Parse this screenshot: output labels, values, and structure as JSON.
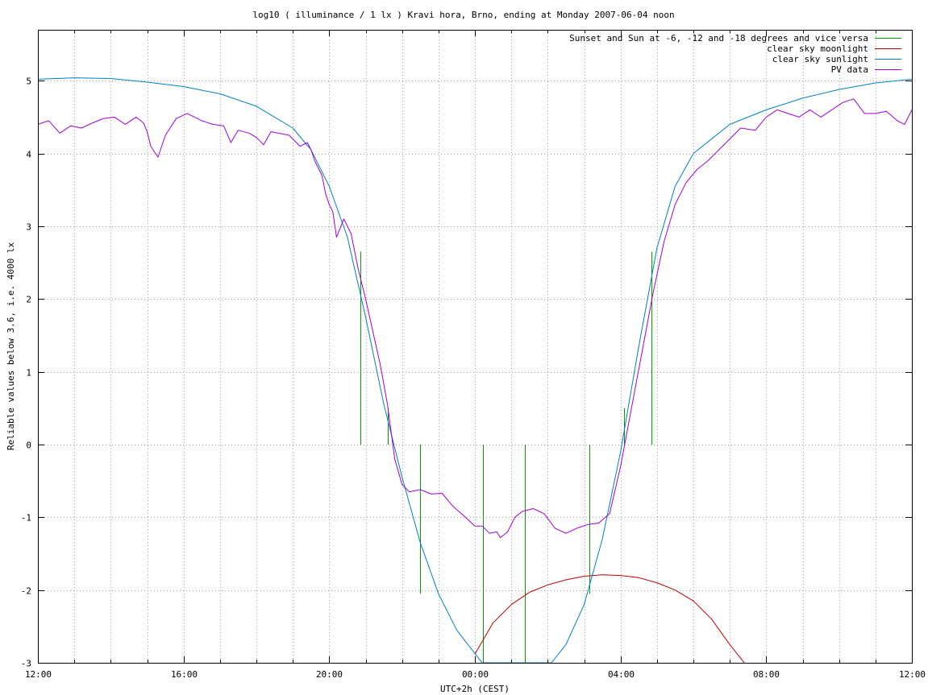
{
  "chart_data": {
    "type": "line",
    "title": "log10 ( illuminance / 1 lx ) Kravi hora, Brno, ending at Monday 2007-06-04 noon",
    "xlabel": "UTC+2h (CEST)",
    "ylabel": "Reliable values below 3.6, i.e. 4000 lx",
    "xlim": [
      0,
      24
    ],
    "ylim": [
      -3,
      5.7
    ],
    "grid": true,
    "legend_position": "top-right",
    "x_tick_labels": [
      "12:00",
      "16:00",
      "20:00",
      "00:00",
      "04:00",
      "08:00",
      "12:00"
    ],
    "x_tick_label_hours": [
      0,
      4,
      8,
      12,
      16,
      20,
      24
    ],
    "y_ticks": [
      -3,
      -2,
      -1,
      0,
      1,
      2,
      3,
      4,
      5
    ],
    "x_unit_note": "hours since 12:00 CEST",
    "series": [
      {
        "name": "Sunset and Sun at -6, -12 and -18 degrees and vice versa",
        "color": "#00a000",
        "kind": "vlines",
        "lines": [
          {
            "x": 8.85,
            "y0": 0,
            "y1": 2.65
          },
          {
            "x": 9.6,
            "y0": 0,
            "y1": 0.5
          },
          {
            "x": 10.5,
            "y0": -2.05,
            "y1": 0
          },
          {
            "x": 12.22,
            "y0": -3,
            "y1": 0
          },
          {
            "x": 13.38,
            "y0": -3,
            "y1": 0
          },
          {
            "x": 15.15,
            "y0": -2.05,
            "y1": 0
          },
          {
            "x": 16.1,
            "y0": 0,
            "y1": 0.5
          },
          {
            "x": 16.85,
            "y0": 0,
            "y1": 2.65
          }
        ]
      },
      {
        "name": "clear sky moonlight",
        "color": "#c00000",
        "x": [
          12.0,
          12.5,
          13.0,
          13.5,
          14.0,
          14.5,
          15.0,
          15.5,
          16.0,
          16.5,
          17.0,
          17.5,
          18.0,
          18.5,
          19.0,
          19.4
        ],
        "values": [
          -2.88,
          -2.45,
          -2.2,
          -2.03,
          -1.93,
          -1.86,
          -1.81,
          -1.79,
          -1.8,
          -1.83,
          -1.9,
          -2.0,
          -2.15,
          -2.4,
          -2.75,
          -3.0
        ]
      },
      {
        "name": "clear sky sunlight",
        "color": "#0080c0",
        "x": [
          0,
          1,
          2,
          3,
          4,
          5,
          6,
          7,
          7.5,
          8,
          8.5,
          9,
          9.5,
          10,
          10.5,
          11,
          11.5,
          12.2,
          14.1,
          14.5,
          15,
          15.5,
          16,
          16.5,
          17,
          17.5,
          18,
          19,
          20,
          21,
          22,
          23,
          24
        ],
        "values": [
          5.02,
          5.04,
          5.03,
          4.98,
          4.92,
          4.82,
          4.65,
          4.35,
          4.05,
          3.55,
          2.85,
          1.75,
          0.55,
          -0.45,
          -1.35,
          -2.05,
          -2.55,
          -3.0,
          -3.0,
          -2.75,
          -2.2,
          -1.3,
          -0.1,
          1.35,
          2.7,
          3.55,
          4.0,
          4.4,
          4.6,
          4.76,
          4.88,
          4.97,
          5.02
        ]
      },
      {
        "name": "PV data",
        "color": "#a000e0",
        "x": [
          0,
          0.3,
          0.6,
          0.9,
          1.2,
          1.5,
          1.8,
          2.1,
          2.4,
          2.7,
          2.9,
          3.0,
          3.1,
          3.3,
          3.5,
          3.8,
          4.1,
          4.5,
          4.8,
          5.1,
          5.3,
          5.5,
          5.8,
          6.0,
          6.2,
          6.4,
          6.6,
          6.9,
          7.2,
          7.4,
          7.5,
          7.6,
          7.8,
          7.9,
          8.0,
          8.1,
          8.2,
          8.4,
          8.6,
          8.8,
          9.0,
          9.2,
          9.4,
          9.6,
          9.8,
          10.0,
          10.2,
          10.5,
          10.8,
          11.1,
          11.4,
          11.7,
          12.0,
          12.2,
          12.4,
          12.6,
          12.7,
          12.9,
          13.1,
          13.3,
          13.6,
          13.9,
          14.2,
          14.5,
          14.8,
          15.1,
          15.4,
          15.7,
          16.0,
          16.3,
          16.6,
          16.9,
          17.2,
          17.5,
          17.8,
          18.1,
          18.4,
          18.7,
          19.0,
          19.3,
          19.7,
          20.0,
          20.3,
          20.6,
          20.9,
          21.2,
          21.5,
          21.8,
          22.1,
          22.4,
          22.7,
          23.0,
          23.3,
          23.6,
          23.8,
          24.0
        ],
        "values": [
          4.4,
          4.45,
          4.28,
          4.38,
          4.35,
          4.42,
          4.48,
          4.5,
          4.4,
          4.5,
          4.42,
          4.3,
          4.1,
          3.95,
          4.25,
          4.48,
          4.55,
          4.45,
          4.4,
          4.38,
          4.15,
          4.32,
          4.28,
          4.22,
          4.12,
          4.3,
          4.28,
          4.25,
          4.1,
          4.15,
          4.05,
          3.9,
          3.7,
          3.45,
          3.3,
          3.2,
          2.85,
          3.1,
          2.9,
          2.4,
          2.0,
          1.55,
          1.1,
          0.55,
          -0.2,
          -0.55,
          -0.65,
          -0.62,
          -0.68,
          -0.67,
          -0.85,
          -0.98,
          -1.12,
          -1.12,
          -1.22,
          -1.2,
          -1.28,
          -1.2,
          -1.0,
          -0.92,
          -0.88,
          -0.95,
          -1.15,
          -1.22,
          -1.15,
          -1.1,
          -1.08,
          -0.95,
          -0.3,
          0.5,
          1.3,
          2.1,
          2.8,
          3.3,
          3.6,
          3.78,
          3.9,
          4.05,
          4.2,
          4.35,
          4.32,
          4.5,
          4.6,
          4.55,
          4.5,
          4.6,
          4.5,
          4.6,
          4.7,
          4.75,
          4.55,
          4.55,
          4.58,
          4.45,
          4.4,
          4.6
        ]
      }
    ]
  }
}
